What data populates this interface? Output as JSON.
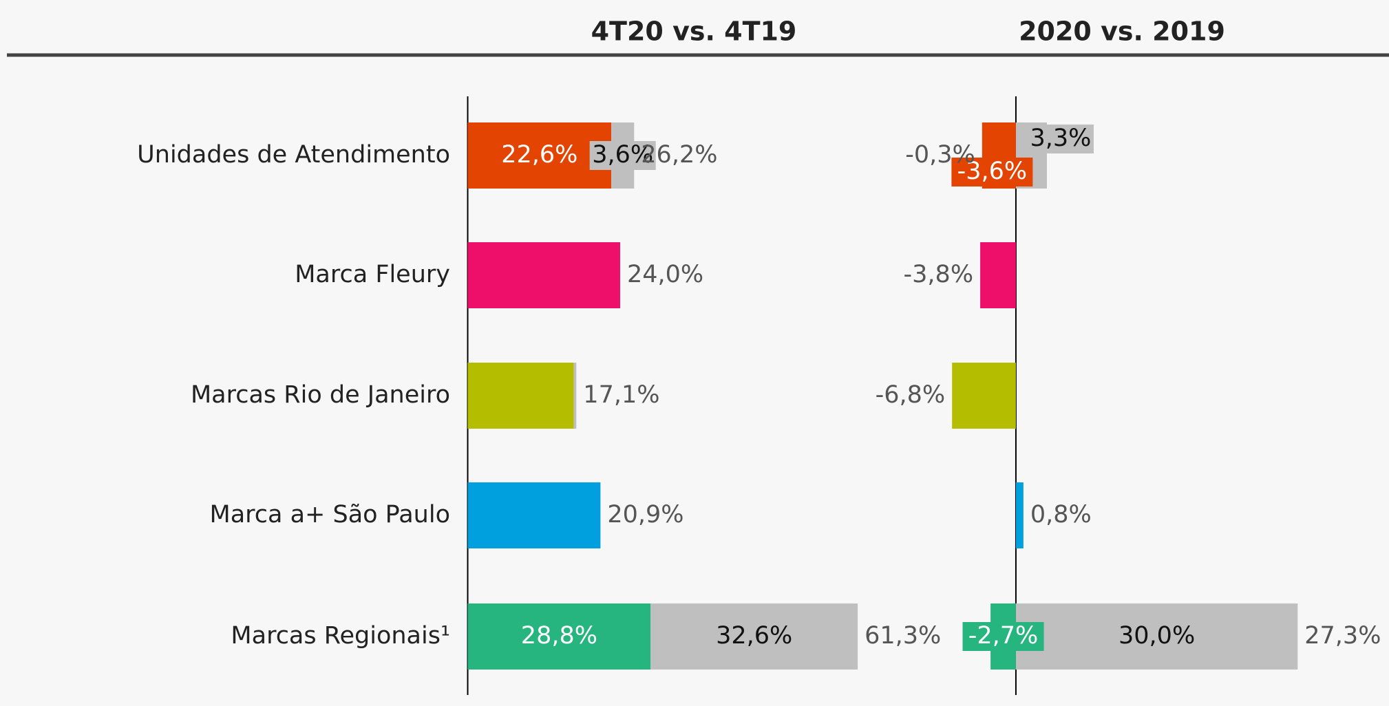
{
  "chart_data": [
    {
      "type": "bar",
      "title": "4T20 vs. 4T19",
      "categories": [
        "Unidades de Atendimento",
        "Marca Fleury",
        "Marcas Rio de Janeiro",
        "Marca a+ São Paulo",
        "Marcas Regionais¹"
      ],
      "colors": [
        "#e34402",
        "#ee0f6b",
        "#b5bd00",
        "#00a0df",
        "#26b57f"
      ],
      "acquisition_color": "#bfbfbf",
      "organic": [
        22.6,
        24.0,
        16.7,
        20.9,
        28.8
      ],
      "organic_labels": [
        "22,6%",
        null,
        null,
        null,
        "28,8%"
      ],
      "acquisition": [
        3.6,
        null,
        0.4,
        null,
        32.6
      ],
      "acquisition_labels": [
        "3,6%",
        null,
        null,
        null,
        "32,6%"
      ],
      "totals": [
        26.2,
        24.0,
        17.1,
        20.9,
        61.3
      ],
      "total_labels": [
        "26,2%",
        "24,0%",
        "17,1%",
        "20,9%",
        "61,3%"
      ],
      "xlim": [
        0,
        70
      ]
    },
    {
      "type": "bar",
      "title": "2020 vs. 2019",
      "categories": [
        "Unidades de Atendimento",
        "Marca Fleury",
        "Marcas Rio de Janeiro",
        "Marca a+ São Paulo",
        "Marcas Regionais¹"
      ],
      "colors": [
        "#e34402",
        "#ee0f6b",
        "#b5bd00",
        "#00a0df",
        "#26b57f"
      ],
      "acquisition_color": "#bfbfbf",
      "organic": [
        -3.6,
        -3.8,
        -6.8,
        0.8,
        -2.7
      ],
      "organic_labels": [
        "-3,6%",
        null,
        null,
        null,
        "-2,7%"
      ],
      "acquisition": [
        3.3,
        null,
        null,
        null,
        30.0
      ],
      "acquisition_labels": [
        "3,3%",
        null,
        null,
        null,
        "30,0%"
      ],
      "totals": [
        -0.3,
        -3.8,
        -6.8,
        0.8,
        27.3
      ],
      "total_labels": [
        "-0,3%",
        "-3,8%",
        "-6,8%",
        "0,8%",
        "27,3%"
      ],
      "xlim": [
        -10,
        35
      ]
    }
  ]
}
